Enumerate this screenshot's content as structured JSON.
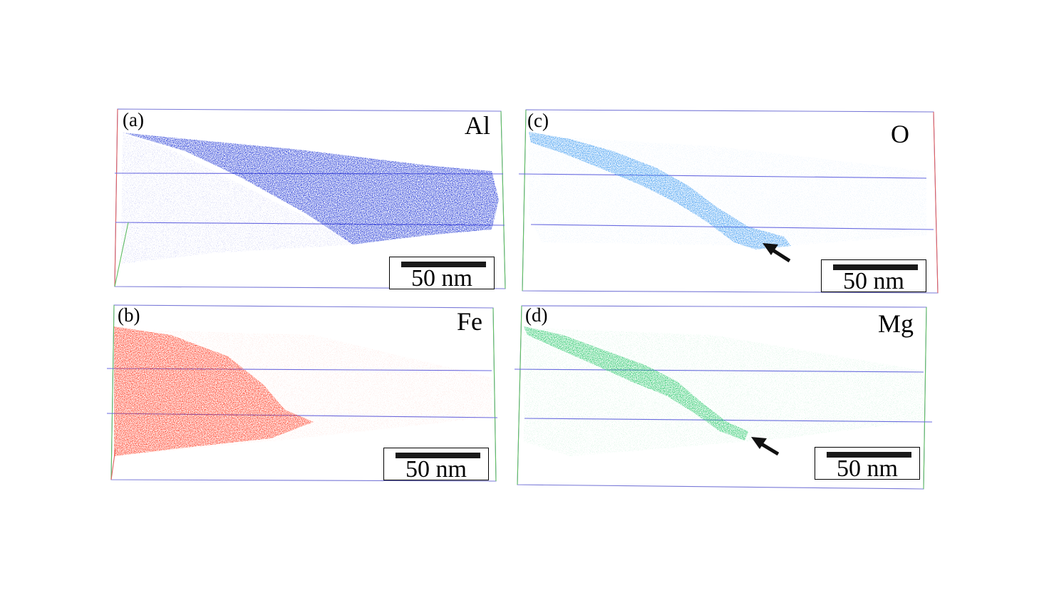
{
  "panels": [
    {
      "id": "a",
      "label": "(a)",
      "element": "Al",
      "color": "#0a1fd0",
      "scale_text": "50 nm"
    },
    {
      "id": "b",
      "label": "(b)",
      "element": "Fe",
      "color": "#ff2a10",
      "scale_text": "50 nm"
    },
    {
      "id": "c",
      "label": "(c)",
      "element": "O",
      "color": "#2d92f0",
      "scale_text": "50 nm"
    },
    {
      "id": "d",
      "label": "(d)",
      "element": "Mg",
      "color": "#12c25a",
      "scale_text": "50 nm"
    }
  ],
  "arrows": [
    {
      "panel": "c",
      "name": "arrow-icon"
    },
    {
      "panel": "d",
      "name": "arrow-icon"
    }
  ]
}
